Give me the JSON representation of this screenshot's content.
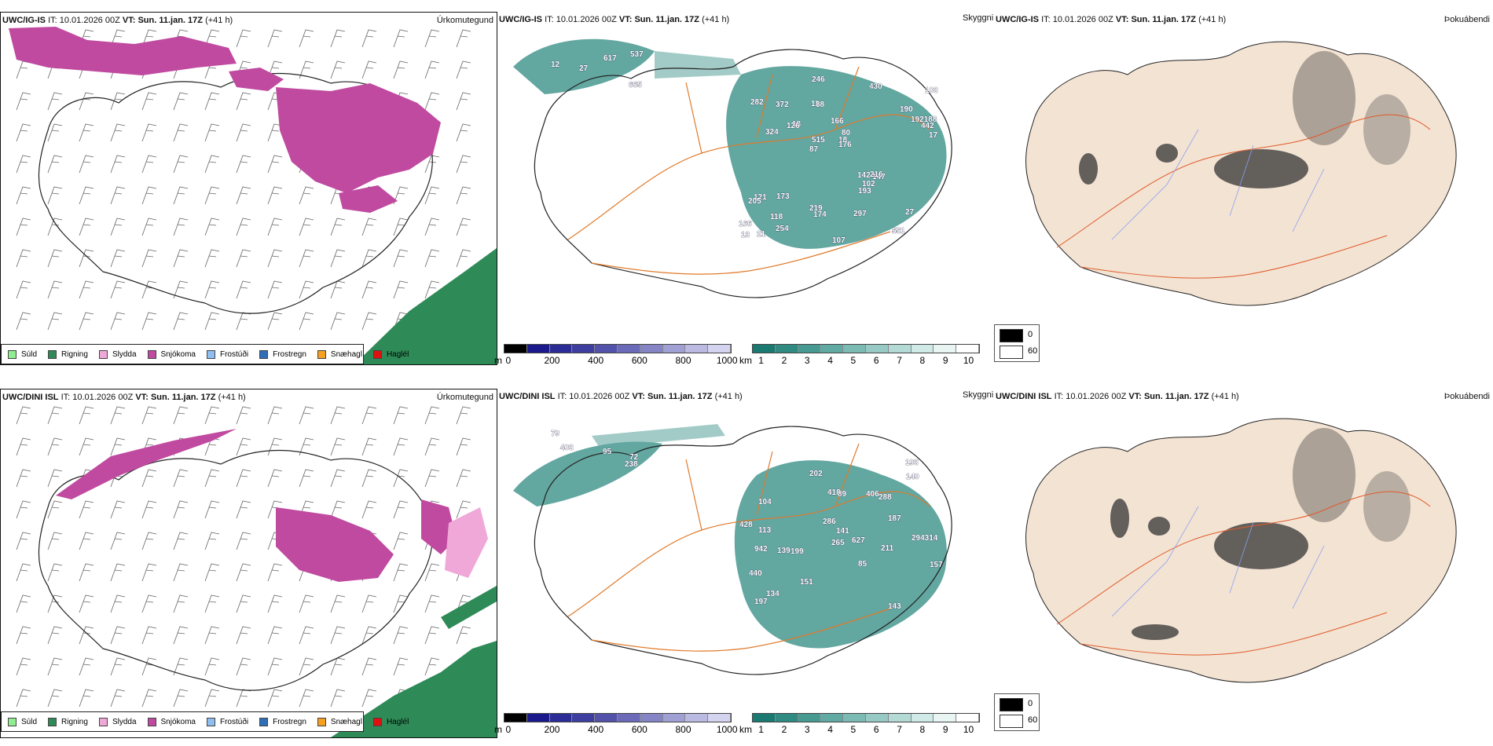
{
  "rows": [
    {
      "model": "UWC/IG-IS",
      "it_label": "IT:",
      "it_value": "10.01.2026 00Z",
      "vt_label": "VT:",
      "vt_value": "Sun. 11.jan. 17Z",
      "lead": "(+41 h)",
      "cloud_labels": [
        "665",
        "12",
        "537",
        "27",
        "617",
        "21",
        "11",
        "166",
        "121",
        "18",
        "166",
        "118",
        "88",
        "80",
        "147",
        "282",
        "246",
        "17",
        "142",
        "192188",
        "87",
        "219",
        "515",
        "372",
        "430",
        "173",
        "551",
        "27",
        "216",
        "107",
        "126",
        "324",
        "193",
        "254",
        "442",
        "18",
        "13",
        "174",
        "176",
        "205",
        "190",
        "103",
        "102",
        "297"
      ]
    },
    {
      "model": "UWC/DINI ISL",
      "it_label": "IT:",
      "it_value": "10.01.2026 00Z",
      "vt_label": "VT:",
      "vt_value": "Sun. 11.jan. 17Z",
      "lead": "(+41 h)",
      "cloud_labels": [
        "238",
        "403",
        "95",
        "79",
        "72",
        "104",
        "134",
        "199",
        "288",
        "418",
        "406",
        "143",
        "151",
        "202",
        "627",
        "440",
        "211",
        "141",
        "428",
        "197",
        "193",
        "89",
        "187",
        "157",
        "294314",
        "113",
        "139",
        "265",
        "286",
        "140",
        "85",
        "942"
      ]
    }
  ],
  "panel_titles": {
    "precip": "Úrkomutegund",
    "clouds": "Skyggni",
    "fog": "Þokuábendi"
  },
  "precip_legend": [
    {
      "label": "Súld",
      "color": "#90ee90"
    },
    {
      "label": "Rigning",
      "color": "#2e8b57"
    },
    {
      "label": "Slydda",
      "color": "#f0a8d8"
    },
    {
      "label": "Snjókoma",
      "color": "#c04aa0"
    },
    {
      "label": "Frostúði",
      "color": "#8fbff0"
    },
    {
      "label": "Frostregn",
      "color": "#2f6fb8"
    },
    {
      "label": "Snæhagl",
      "color": "#f5a020"
    },
    {
      "label": "Haglél",
      "color": "#e01010"
    }
  ],
  "cloudbase_bar": {
    "unit": "m",
    "ticks": [
      "0",
      "200",
      "400",
      "600",
      "800",
      "1000"
    ],
    "colors": [
      "#000000",
      "#1a1a8c",
      "#2c2c96",
      "#3e3ea0",
      "#5252aa",
      "#6a6ab8",
      "#8585c6",
      "#a0a0d4",
      "#babae2",
      "#d4d4f0"
    ]
  },
  "visibility_bar": {
    "unit": "km",
    "ticks": [
      "1",
      "2",
      "3",
      "4",
      "5",
      "6",
      "7",
      "8",
      "9",
      "10"
    ],
    "colors": [
      "#1a7a72",
      "#2f8a82",
      "#479a92",
      "#61aaa3",
      "#7cbab4",
      "#98cac5",
      "#b4dad6",
      "#d0eae7",
      "#e8f5f3",
      "#ffffff"
    ]
  },
  "fog_legend": [
    {
      "label": "0",
      "color": "#000000"
    },
    {
      "label": "60",
      "color": "#ffffff"
    }
  ],
  "colors": {
    "snow": "#c04aa0",
    "rain": "#2e8b57",
    "sleet": "#f0a8d8",
    "teal": "#2f8a82",
    "cloudbase": "#2c2c96",
    "road": "#e07a2a",
    "land": "#f3e3d3",
    "river": "#8aa0f0"
  }
}
